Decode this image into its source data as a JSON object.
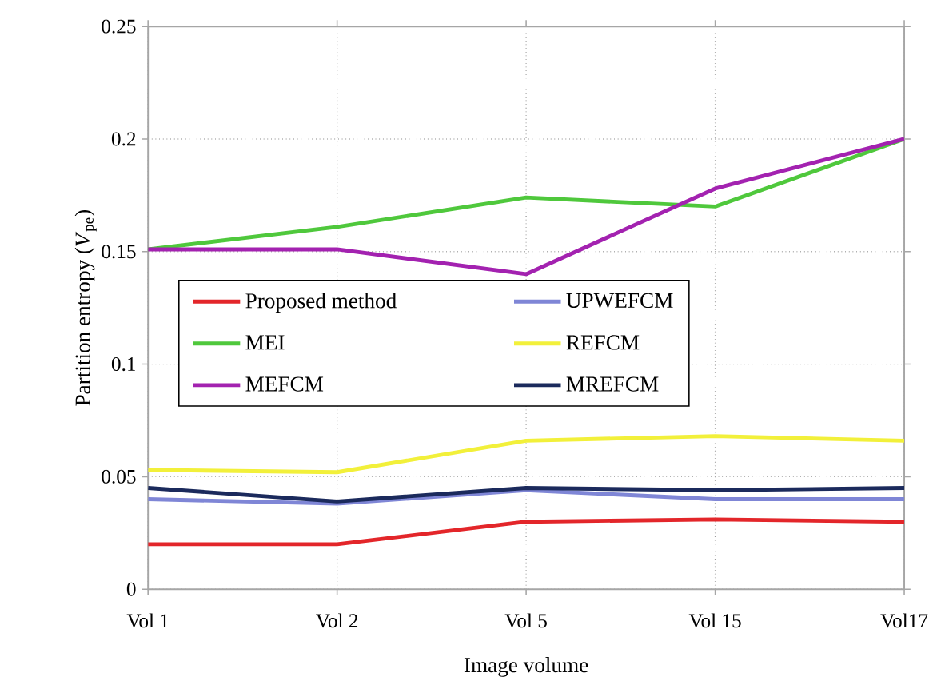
{
  "chart_data": {
    "type": "line",
    "xlabel": "Image volume",
    "ylabel": "Partition entropy (*V*$_{pe}$)",
    "categories": [
      "Vol 1",
      "Vol 2",
      "Vol 5",
      "Vol 15",
      "Vol17"
    ],
    "ylim": [
      0,
      0.25
    ],
    "yticks": [
      0,
      0.05,
      0.1,
      0.15,
      0.2,
      0.25
    ],
    "grid": true,
    "legend": "center",
    "line_style": "solid",
    "series": [
      {
        "name": "Proposed method",
        "color": "#e3262a",
        "values": [
          0.02,
          0.02,
          0.03,
          0.031,
          0.03
        ]
      },
      {
        "name": "UPWEFCM",
        "color": "#7f86d6",
        "values": [
          0.04,
          0.038,
          0.044,
          0.04,
          0.04
        ]
      },
      {
        "name": "MEI",
        "color": "#4fc83c",
        "values": [
          0.151,
          0.161,
          0.174,
          0.17,
          0.2
        ]
      },
      {
        "name": "REFCM",
        "color": "#f2f03a",
        "values": [
          0.053,
          0.052,
          0.066,
          0.068,
          0.066
        ]
      },
      {
        "name": "MEFCM",
        "color": "#a322b0",
        "values": [
          0.151,
          0.151,
          0.14,
          0.178,
          0.2
        ]
      },
      {
        "name": "MREFCM",
        "color": "#1b2a5c",
        "values": [
          0.045,
          0.039,
          0.045,
          0.044,
          0.045
        ]
      }
    ]
  }
}
